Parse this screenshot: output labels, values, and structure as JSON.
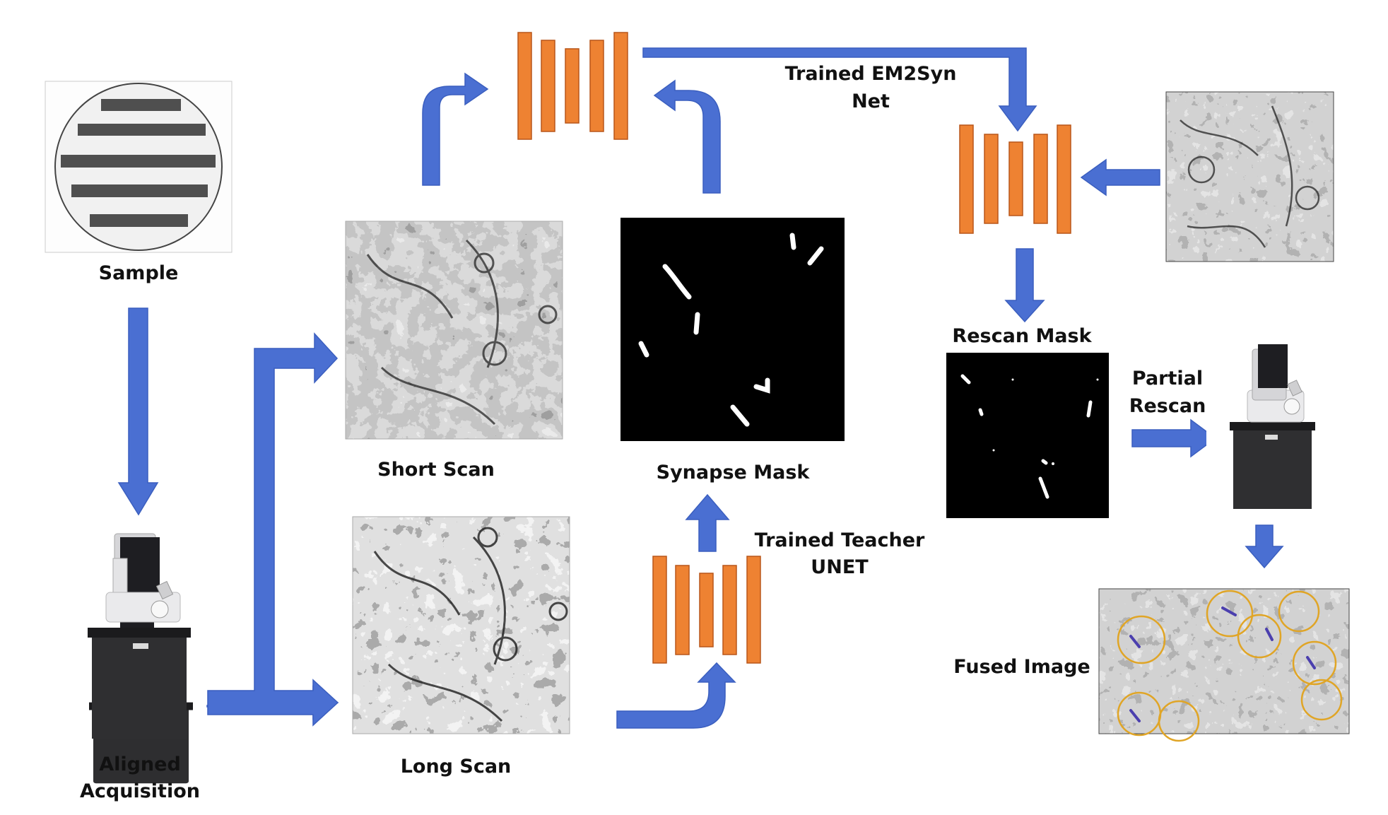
{
  "labels": {
    "sample": "Sample",
    "aligned_line1": "Aligned",
    "aligned_line2": "Acquisition",
    "short_scan": "Short Scan",
    "long_scan": "Long Scan",
    "synapse_mask": "Synapse Mask",
    "teacher_line1": "Trained Teacher",
    "teacher_line2": "UNET",
    "em2syn_line1": "Trained EM2Syn",
    "em2syn_line2": "Net",
    "rescan_mask": "Rescan Mask",
    "partial_line1": "Partial",
    "partial_line2": "Rescan",
    "fused_image": "Fused Image"
  },
  "colors": {
    "arrow": "#4a6fd2",
    "network_layers": "#ee8232",
    "overlay_circles": "#e0a526",
    "synapse_overlay": "#4b3fae"
  },
  "icons": {
    "sample": "sample-grid-icon",
    "microscope": "electron-microscope-icon",
    "network": "neural-network-icon"
  }
}
